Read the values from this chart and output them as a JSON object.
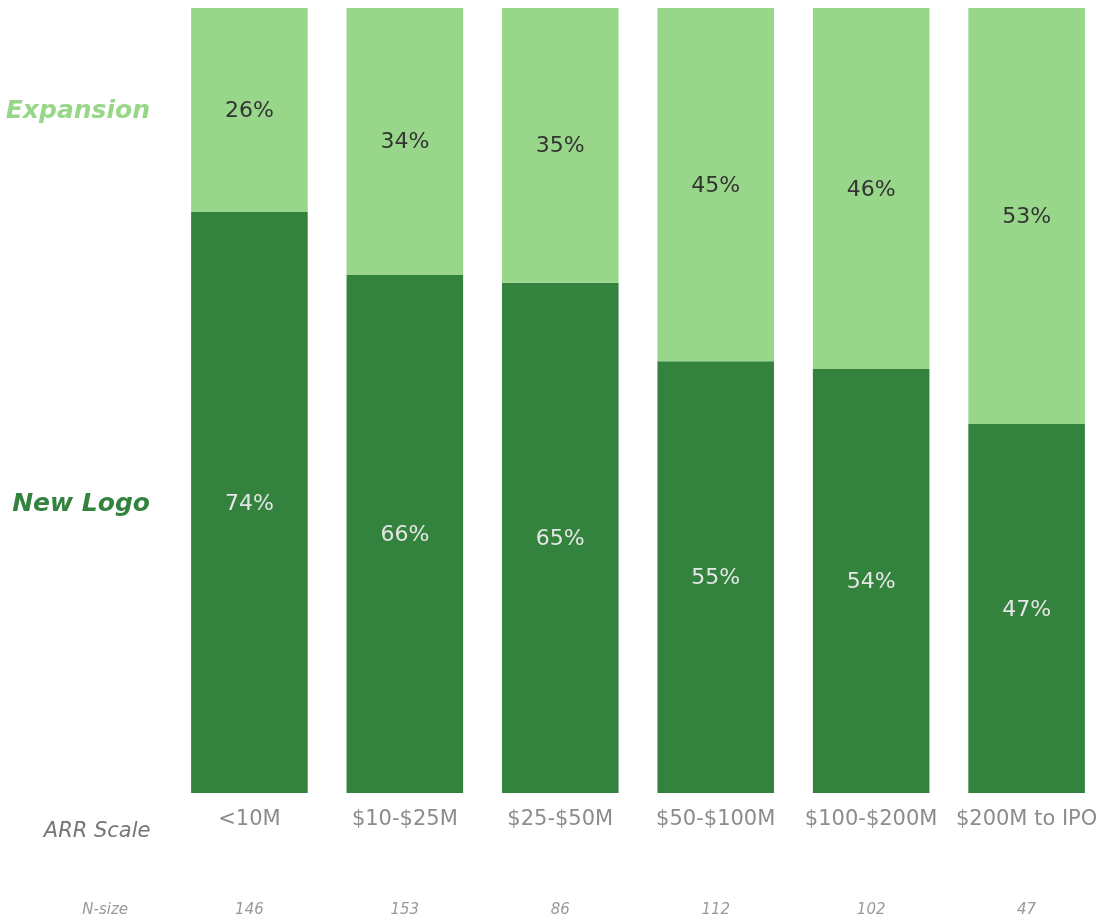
{
  "chart_data": {
    "type": "bar",
    "stacked": true,
    "xlabel": "ARR Scale",
    "categories": [
      "<10M",
      "$10-$25M",
      "$25-$50M",
      "$50-$100M",
      "$100-$200M",
      "$200M to IPO"
    ],
    "series": [
      {
        "name": "New Logo",
        "color": "#33833f",
        "values": [
          74,
          66,
          65,
          55,
          54,
          47
        ],
        "value_labels": [
          "74%",
          "66%",
          "65%",
          "55%",
          "54%",
          "47%"
        ]
      },
      {
        "name": "Expansion",
        "color": "#98d78a",
        "values": [
          26,
          34,
          35,
          45,
          46,
          53
        ],
        "value_labels": [
          "26%",
          "34%",
          "35%",
          "45%",
          "46%",
          "53%"
        ]
      }
    ],
    "ylim": [
      0,
      100
    ],
    "tick_labels": "x",
    "annotations": [
      "N-size",
      "146",
      "153",
      "86",
      "112",
      "102",
      "47"
    ]
  }
}
